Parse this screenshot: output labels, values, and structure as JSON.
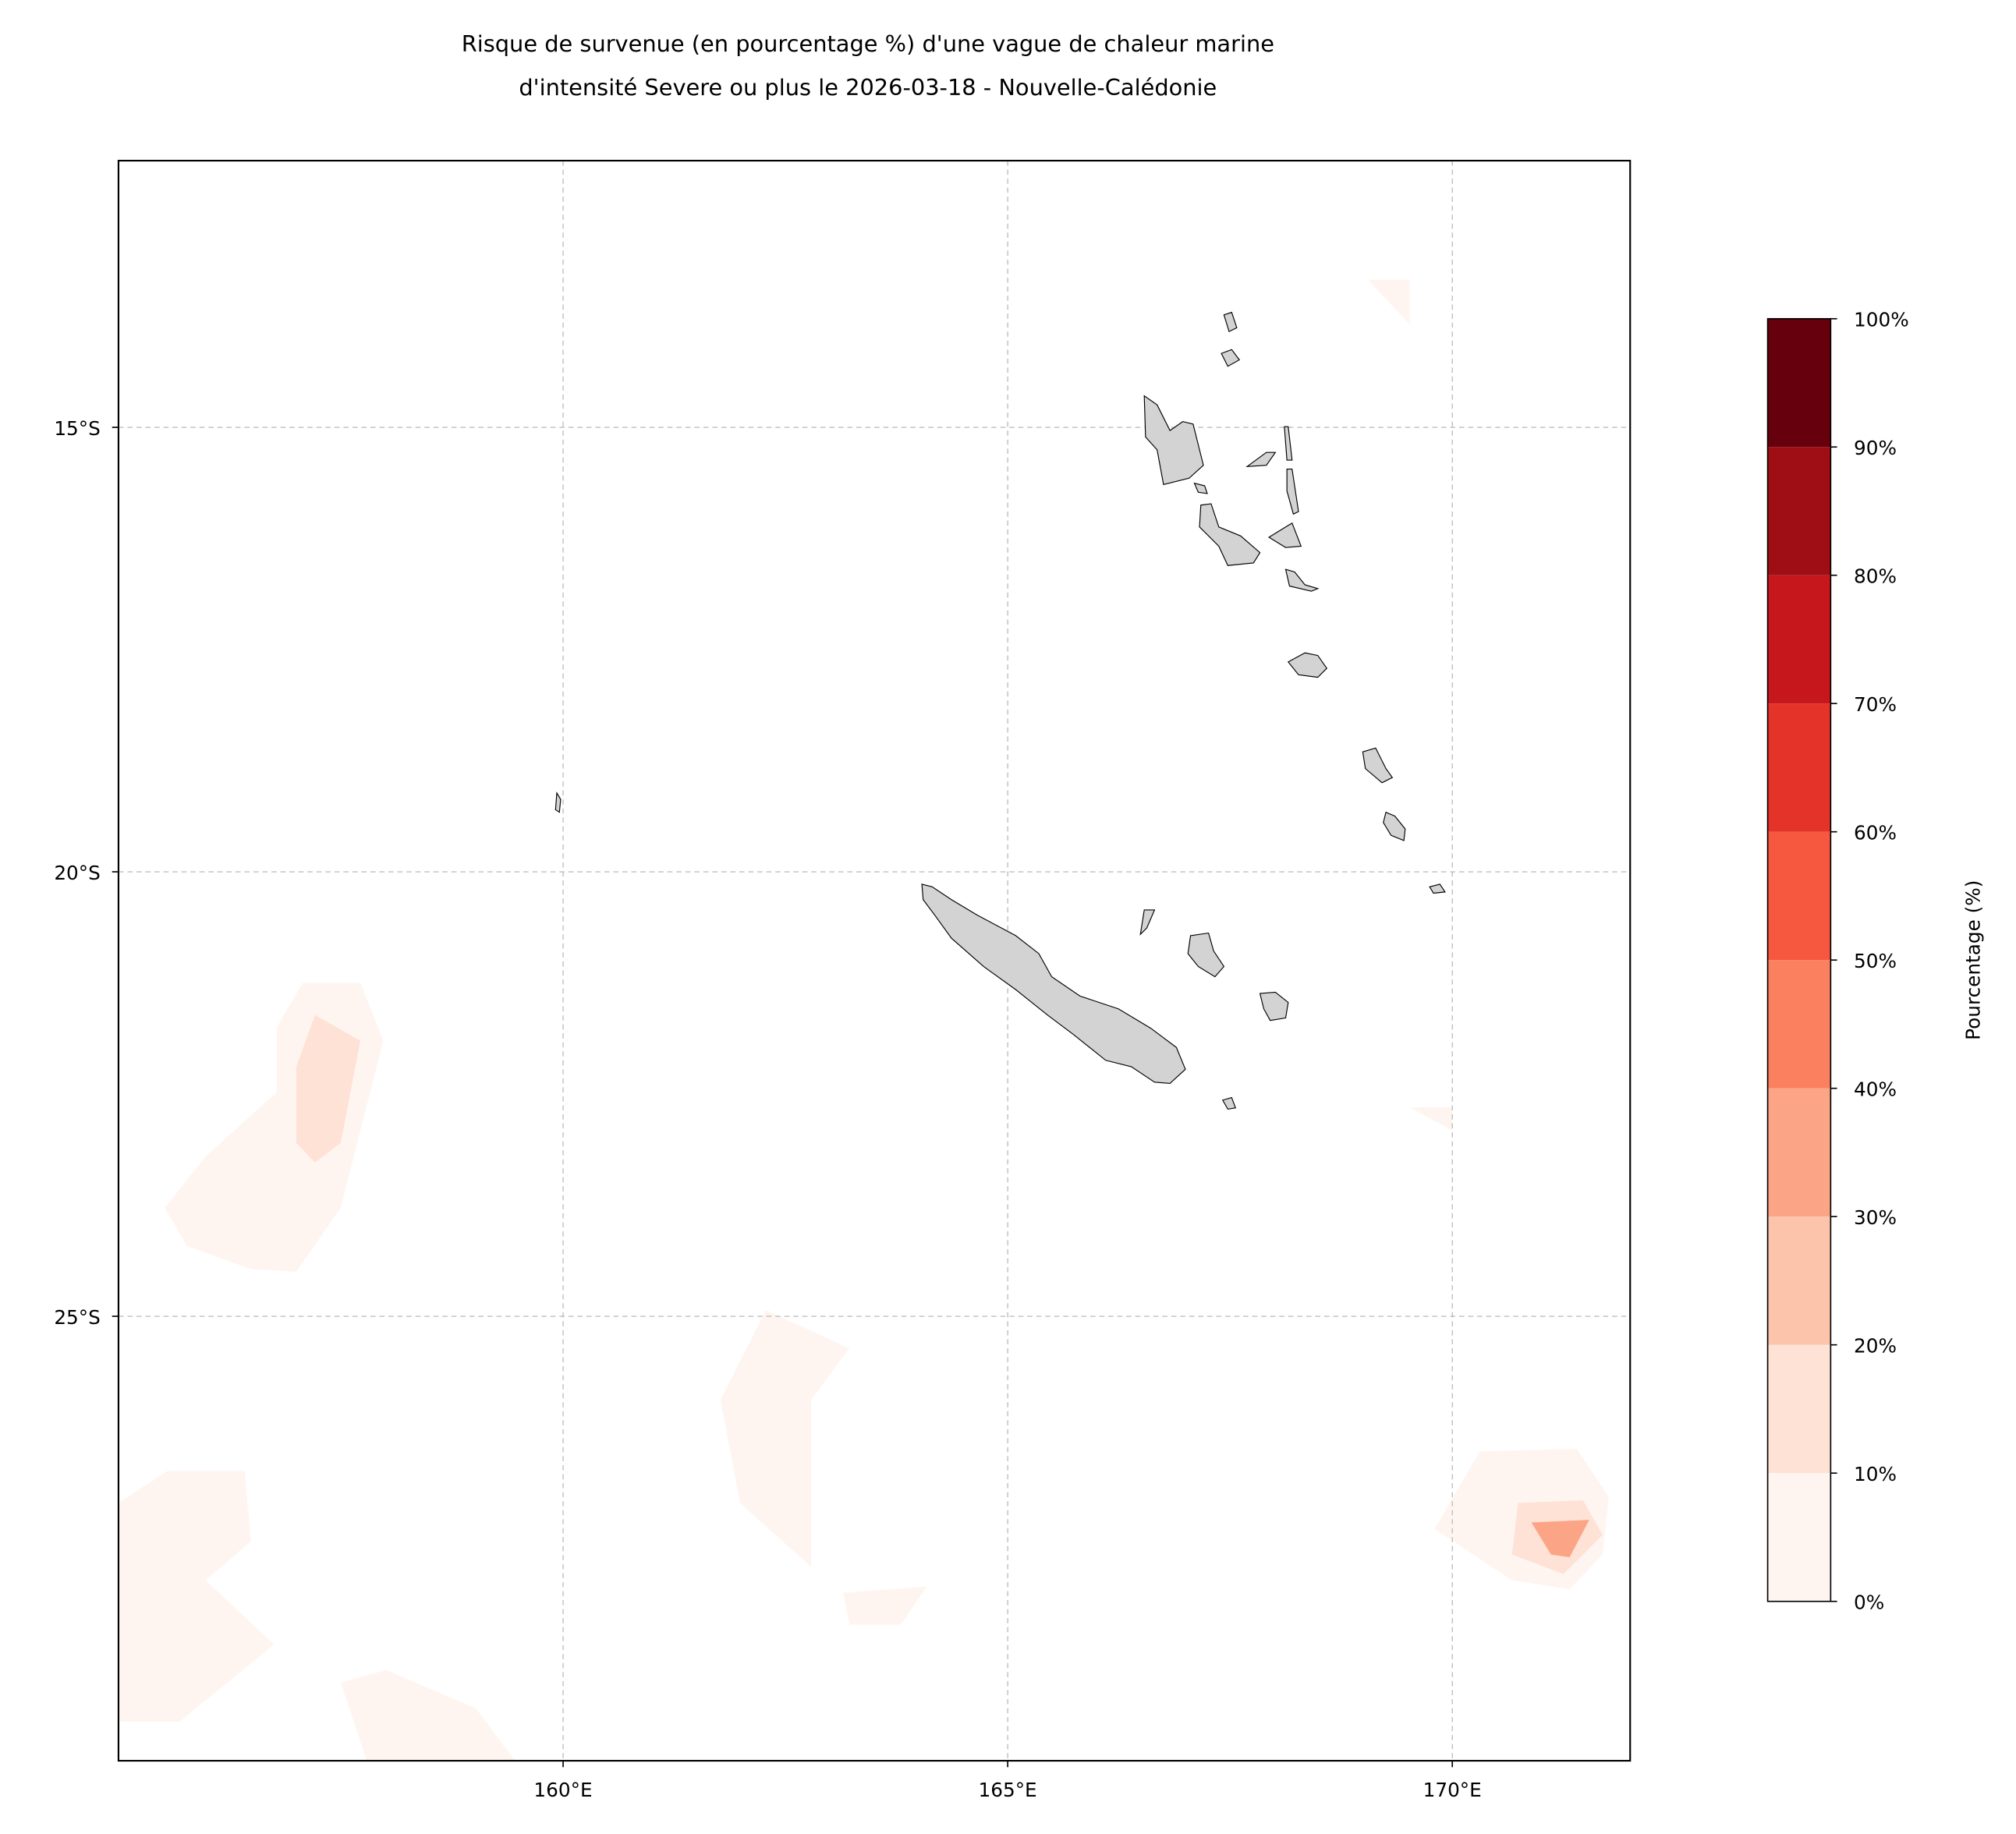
{
  "chart_data": {
    "type": "contour_map",
    "title": [
      "Risque de survenue (en pourcentage %) d'une vague de chaleur marine",
      "d'intensité Severe ou plus le 2026-03-18 - Nouvelle-Calédonie"
    ],
    "xlim": [
      155,
      172
    ],
    "ylim": [
      -30,
      -12
    ],
    "xticks": [
      {
        "value": 160,
        "label": "160°E"
      },
      {
        "value": 165,
        "label": "165°E"
      },
      {
        "value": 170,
        "label": "170°E"
      }
    ],
    "yticks": [
      {
        "value": -15,
        "label": "15°S"
      },
      {
        "value": -20,
        "label": "20°S"
      },
      {
        "value": -25,
        "label": "25°S"
      }
    ],
    "grid": true,
    "colorbar_label": "Pourcentage (%)",
    "colorbar_ticks": [
      {
        "value": 0,
        "label": "0%"
      },
      {
        "value": 10,
        "label": "10%"
      },
      {
        "value": 20,
        "label": "20%"
      },
      {
        "value": 30,
        "label": "30%"
      },
      {
        "value": 40,
        "label": "40%"
      },
      {
        "value": 50,
        "label": "50%"
      },
      {
        "value": 60,
        "label": "60%"
      },
      {
        "value": 70,
        "label": "70%"
      },
      {
        "value": 80,
        "label": "80%"
      },
      {
        "value": 90,
        "label": "90%"
      },
      {
        "value": 100,
        "label": "100%"
      }
    ],
    "colors": [
      "#fff5f0",
      "#fee2d5",
      "#fcc5ab",
      "#fca486",
      "#fb8060",
      "#f5573f",
      "#e43329",
      "#c5171c",
      "#9f0e14",
      "#67000d"
    ],
    "patches": [
      {
        "level": 0,
        "points": [
          [
            157.07,
            -21.25
          ],
          [
            157.72,
            -21.25
          ],
          [
            157.98,
            -21.9
          ],
          [
            157.72,
            -22.91
          ],
          [
            157.5,
            -23.78
          ],
          [
            157.0,
            -24.5
          ],
          [
            156.49,
            -24.47
          ],
          [
            155.77,
            -24.21
          ],
          [
            155.52,
            -23.78
          ],
          [
            155.98,
            -23.2
          ],
          [
            156.78,
            -22.48
          ],
          [
            156.78,
            -21.75
          ]
        ]
      },
      {
        "level": 10,
        "points": [
          [
            157.21,
            -21.61
          ],
          [
            157.72,
            -21.9
          ],
          [
            157.5,
            -23.05
          ],
          [
            157.21,
            -23.27
          ],
          [
            157.0,
            -23.05
          ],
          [
            157.0,
            -22.19
          ]
        ]
      },
      {
        "level": 0,
        "points": [
          [
            162.28,
            -24.93
          ],
          [
            163.22,
            -25.36
          ],
          [
            162.79,
            -25.94
          ],
          [
            162.79,
            -27.82
          ],
          [
            161.99,
            -27.1
          ],
          [
            161.77,
            -25.94
          ]
        ]
      },
      {
        "level": 0,
        "points": [
          [
            163.15,
            -28.11
          ],
          [
            164.09,
            -28.04
          ],
          [
            163.8,
            -28.47
          ],
          [
            163.22,
            -28.47
          ]
        ]
      },
      {
        "level": 0,
        "points": [
          [
            170.31,
            -26.52
          ],
          [
            171.4,
            -26.49
          ],
          [
            171.76,
            -27.03
          ],
          [
            171.69,
            -27.68
          ],
          [
            171.32,
            -28.07
          ],
          [
            170.67,
            -27.97
          ],
          [
            169.8,
            -27.39
          ]
        ]
      },
      {
        "level": 10,
        "points": [
          [
            170.74,
            -27.1
          ],
          [
            171.47,
            -27.07
          ],
          [
            171.69,
            -27.46
          ],
          [
            171.25,
            -27.9
          ],
          [
            170.67,
            -27.68
          ]
        ]
      },
      {
        "level": 30,
        "points": [
          [
            170.89,
            -27.32
          ],
          [
            171.54,
            -27.29
          ],
          [
            171.32,
            -27.71
          ],
          [
            171.11,
            -27.68
          ]
        ]
      },
      {
        "level": 0,
        "points": [
          [
            155,
            -27.1
          ],
          [
            155.55,
            -26.74
          ],
          [
            156.42,
            -26.74
          ],
          [
            156.49,
            -27.53
          ],
          [
            155.98,
            -27.97
          ],
          [
            156.75,
            -28.69
          ],
          [
            155.69,
            -29.56
          ],
          [
            155,
            -29.56
          ]
        ]
      },
      {
        "level": 0,
        "points": [
          [
            157.5,
            -29.12
          ],
          [
            158.01,
            -28.98
          ],
          [
            159.02,
            -29.41
          ],
          [
            159.46,
            -30
          ],
          [
            157.79,
            -30
          ]
        ]
      },
      {
        "level": 0,
        "points": [
          [
            169.05,
            -13.34
          ],
          [
            169.52,
            -13.34
          ],
          [
            169.52,
            -13.84
          ]
        ]
      },
      {
        "level": 0,
        "points": [
          [
            169.52,
            -22.65
          ],
          [
            170.0,
            -22.65
          ],
          [
            170.0,
            -22.91
          ]
        ]
      }
    ]
  }
}
